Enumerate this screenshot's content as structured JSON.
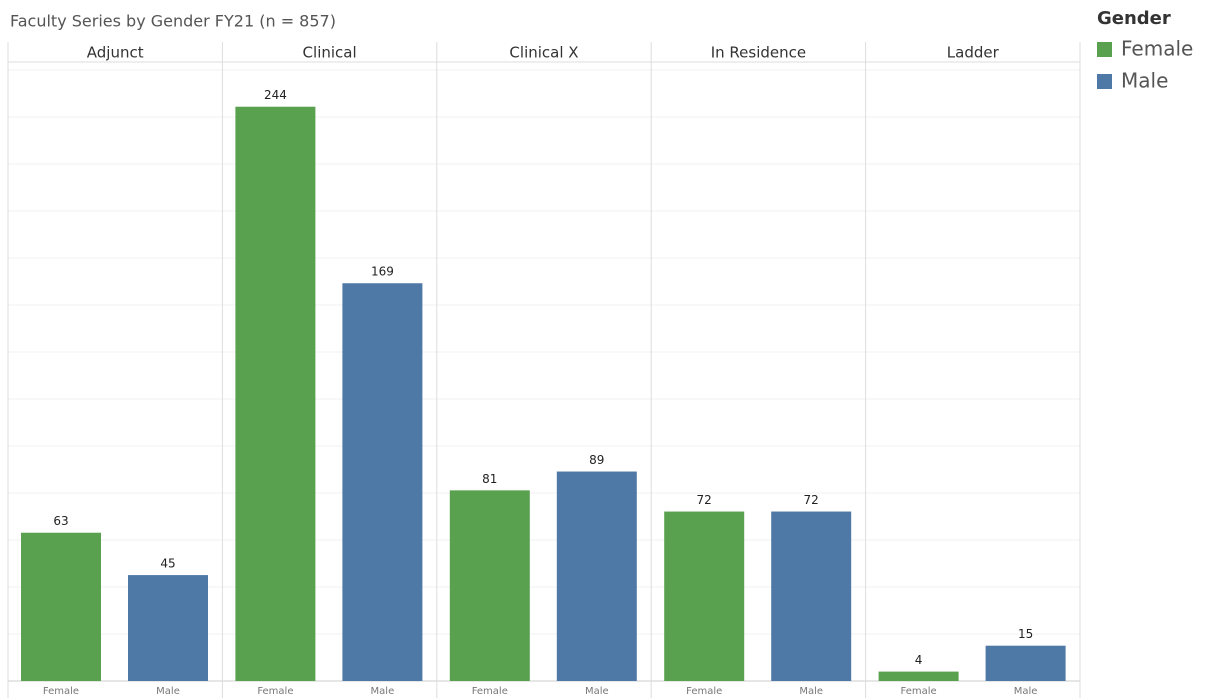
{
  "chart_data": {
    "type": "bar",
    "title": "Faculty Series by Gender FY21 (n = 857)",
    "legend_title": "Gender",
    "categories": [
      "Adjunct",
      "Clinical",
      "Clinical X",
      "In Residence",
      "Ladder"
    ],
    "series": [
      {
        "name": "Female",
        "color": "#59a14f",
        "values": [
          63,
          244,
          81,
          72,
          4
        ]
      },
      {
        "name": "Male",
        "color": "#4e79a7",
        "values": [
          45,
          169,
          89,
          72,
          15
        ]
      }
    ],
    "ylim": [
      0,
      263
    ],
    "grid": true,
    "legend_position": "top-right"
  }
}
